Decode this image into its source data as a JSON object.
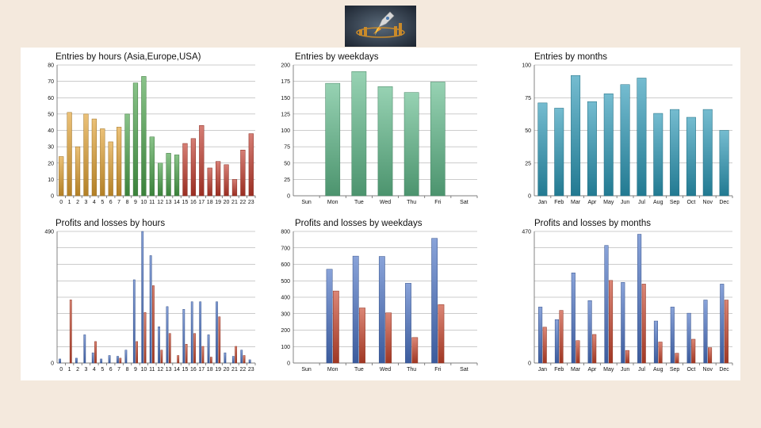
{
  "colors": {
    "page_bg": "#f4e9dd",
    "panel_bg": "#ffffff",
    "asia_gold": "#e0a030",
    "europe_green": "#4aa34a",
    "usa_red": "#c0392b",
    "weekday_green": "#5fb98a",
    "month_teal": "#2a98b6",
    "profit_blue": "#4a72c4",
    "loss_red": "#c8452c"
  },
  "logo": {
    "icon": "rocket-logo-icon"
  },
  "chart_data": [
    {
      "id": "entries-hours",
      "type": "bar",
      "title": "Entries by hours (Asia,Europe,USA)",
      "categories": [
        "0",
        "1",
        "2",
        "3",
        "4",
        "5",
        "6",
        "7",
        "8",
        "9",
        "10",
        "11",
        "12",
        "13",
        "14",
        "15",
        "16",
        "17",
        "18",
        "19",
        "20",
        "21",
        "22",
        "23"
      ],
      "values": [
        24,
        51,
        30,
        50,
        47,
        41,
        33,
        42,
        50,
        69,
        73,
        36,
        20,
        26,
        25,
        32,
        35,
        43,
        17,
        21,
        19,
        10,
        28,
        38
      ],
      "session_colors": [
        "#e0a030",
        "#e0a030",
        "#e0a030",
        "#e0a030",
        "#e0a030",
        "#e0a030",
        "#e0a030",
        "#e0a030",
        "#4aa34a",
        "#4aa34a",
        "#4aa34a",
        "#4aa34a",
        "#4aa34a",
        "#4aa34a",
        "#4aa34a",
        "#c0392b",
        "#c0392b",
        "#c0392b",
        "#c0392b",
        "#c0392b",
        "#c0392b",
        "#c0392b",
        "#c0392b",
        "#c0392b"
      ],
      "ylim": [
        0,
        80
      ],
      "yticks": [
        "0",
        "10",
        "20",
        "30",
        "40",
        "50",
        "60",
        "70",
        "80"
      ],
      "grid": true
    },
    {
      "id": "entries-weekdays",
      "type": "bar",
      "title": "Entries by weekdays",
      "categories": [
        "Sun",
        "Mon",
        "Tue",
        "Wed",
        "Thu",
        "Fri",
        "Sat"
      ],
      "values": [
        0,
        172,
        190,
        167,
        158,
        174,
        0
      ],
      "ylim": [
        0,
        200
      ],
      "yticks": [
        "0",
        "25",
        "50",
        "75",
        "100",
        "125",
        "150",
        "175",
        "200"
      ],
      "grid": true
    },
    {
      "id": "entries-months",
      "type": "bar",
      "title": "Entries by months",
      "categories": [
        "Jan",
        "Feb",
        "Mar",
        "Apr",
        "May",
        "Jun",
        "Jul",
        "Aug",
        "Sep",
        "Oct",
        "Nov",
        "Dec"
      ],
      "values": [
        71,
        67,
        92,
        72,
        78,
        85,
        90,
        63,
        66,
        60,
        66,
        50
      ],
      "ylim": [
        0,
        100
      ],
      "yticks": [
        "0",
        "25",
        "50",
        "75",
        "100"
      ],
      "grid": true
    },
    {
      "id": "pl-hours",
      "type": "bar",
      "title": "Profits and losses by hours",
      "categories": [
        "0",
        "1",
        "2",
        "3",
        "4",
        "5",
        "6",
        "7",
        "8",
        "9",
        "10",
        "11",
        "12",
        "13",
        "14",
        "15",
        "16",
        "17",
        "18",
        "19",
        "20",
        "21",
        "22",
        "23"
      ],
      "series": [
        {
          "color": "#4a72c4",
          "values": [
            15,
            0,
            18,
            105,
            38,
            15,
            28,
            25,
            48,
            310,
            490,
            400,
            135,
            210,
            0,
            200,
            228,
            228,
            105,
            228,
            38,
            25,
            48,
            12
          ]
        },
        {
          "color": "#c8452c",
          "values": [
            0,
            235,
            0,
            0,
            80,
            0,
            0,
            18,
            0,
            80,
            188,
            288,
            48,
            110,
            28,
            70,
            110,
            62,
            22,
            172,
            0,
            62,
            28,
            0
          ]
        }
      ],
      "ylim": [
        0,
        490
      ],
      "yticks": [
        "0",
        "490"
      ],
      "grid": true
    },
    {
      "id": "pl-weekdays",
      "type": "bar",
      "title": "Profits and losses by weekdays",
      "categories": [
        "Sun",
        "Mon",
        "Tue",
        "Wed",
        "Thu",
        "Fri",
        "Sat"
      ],
      "series": [
        {
          "color": "#4a72c4",
          "values": [
            0,
            570,
            650,
            648,
            485,
            758,
            0
          ]
        },
        {
          "color": "#c8452c",
          "values": [
            0,
            438,
            335,
            305,
            155,
            355,
            0
          ]
        }
      ],
      "ylim": [
        0,
        800
      ],
      "yticks": [
        "0",
        "100",
        "200",
        "300",
        "400",
        "500",
        "600",
        "700",
        "800"
      ],
      "grid": true
    },
    {
      "id": "pl-months",
      "type": "bar",
      "title": "Profits and losses by months",
      "categories": [
        "Jan",
        "Feb",
        "Mar",
        "Apr",
        "May",
        "Jun",
        "Jul",
        "Aug",
        "Sep",
        "Oct",
        "Nov",
        "Dec"
      ],
      "series": [
        {
          "color": "#4a72c4",
          "values": [
            200,
            155,
            322,
            223,
            420,
            288,
            460,
            150,
            200,
            178,
            225,
            282
          ]
        },
        {
          "color": "#c8452c",
          "values": [
            128,
            188,
            80,
            102,
            295,
            45,
            282,
            75,
            35,
            85,
            55,
            225
          ]
        }
      ],
      "ylim": [
        0,
        470
      ],
      "yticks": [
        "0",
        "470"
      ],
      "grid": true
    }
  ]
}
